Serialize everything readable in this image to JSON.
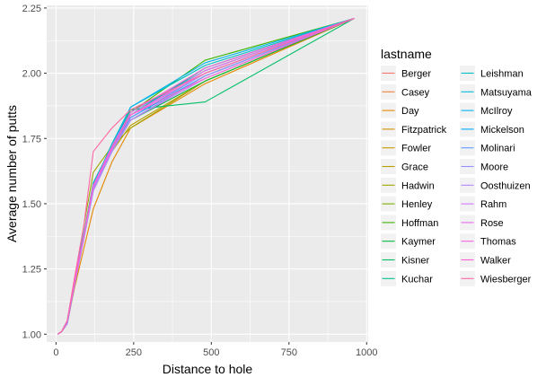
{
  "chart_data": {
    "type": "line",
    "title": "",
    "xlabel": "Distance to hole",
    "ylabel": "Average number of putts",
    "xlim": [
      -30,
      1005
    ],
    "ylim": [
      0.97,
      2.26
    ],
    "x_ticks": [
      0,
      250,
      500,
      750,
      1000
    ],
    "x_tick_labels": [
      "0",
      "250",
      "500",
      "750",
      "1000"
    ],
    "y_ticks": [
      1.0,
      1.25,
      1.5,
      1.75,
      2.0,
      2.25
    ],
    "y_tick_labels": [
      "1.00",
      "1.25",
      "1.50",
      "1.75",
      "2.00",
      "2.25"
    ],
    "grid": true,
    "panel_background": "#EBEBEB",
    "legend_position": "right",
    "legend": {
      "title": "lastname",
      "columns": [
        [
          "Berger",
          "Casey",
          "Day",
          "Fitzpatrick",
          "Fowler",
          "Grace",
          "Hadwin",
          "Henley",
          "Hoffman",
          "Kaymer",
          "Kisner",
          "Kuchar"
        ],
        [
          "Leishman",
          "Matsuyama",
          "McIlroy",
          "Mickelson",
          "Molinari",
          "Moore",
          "Oosthuizen",
          "Rahm",
          "Rose",
          "Thomas",
          "Walker",
          "Wiesberger"
        ]
      ]
    },
    "x": [
      6,
      18,
      36,
      60,
      90,
      120,
      180,
      240,
      480,
      960
    ],
    "series": [
      {
        "name": "Berger",
        "color": "#F8766D",
        "values": [
          1.0,
          1.01,
          1.05,
          1.2,
          1.38,
          1.56,
          1.71,
          1.83,
          2.0,
          2.21
        ]
      },
      {
        "name": "Casey",
        "color": "#F07F37",
        "values": [
          1.0,
          1.01,
          1.04,
          1.19,
          1.37,
          1.55,
          1.7,
          1.82,
          1.99,
          2.21
        ]
      },
      {
        "name": "Day",
        "color": "#E58700",
        "values": [
          1.0,
          1.01,
          1.04,
          1.18,
          1.33,
          1.48,
          1.66,
          1.79,
          1.96,
          2.21
        ]
      },
      {
        "name": "Fitzpatrick",
        "color": "#D89000",
        "values": [
          1.0,
          1.01,
          1.05,
          1.2,
          1.38,
          1.56,
          1.71,
          1.84,
          2.01,
          2.21
        ]
      },
      {
        "name": "Fowler",
        "color": "#C99800",
        "values": [
          1.0,
          1.01,
          1.04,
          1.2,
          1.38,
          1.57,
          1.72,
          1.84,
          2.0,
          2.21
        ]
      },
      {
        "name": "Grace",
        "color": "#B79F00",
        "values": [
          1.0,
          1.01,
          1.04,
          1.19,
          1.37,
          1.55,
          1.7,
          1.8,
          1.97,
          2.21
        ]
      },
      {
        "name": "Hadwin",
        "color": "#A3A500",
        "values": [
          1.0,
          1.01,
          1.05,
          1.21,
          1.42,
          1.62,
          1.72,
          1.79,
          1.97,
          2.21
        ]
      },
      {
        "name": "Henley",
        "color": "#7CAE00",
        "values": [
          1.0,
          1.01,
          1.04,
          1.2,
          1.38,
          1.56,
          1.71,
          1.84,
          2.02,
          2.21
        ]
      },
      {
        "name": "Hoffman",
        "color": "#39B600",
        "values": [
          1.0,
          1.01,
          1.05,
          1.21,
          1.39,
          1.58,
          1.72,
          1.85,
          2.05,
          2.21
        ]
      },
      {
        "name": "Kaymer",
        "color": "#00BA38",
        "values": [
          1.0,
          1.01,
          1.04,
          1.19,
          1.37,
          1.56,
          1.7,
          1.82,
          1.97,
          2.21
        ]
      },
      {
        "name": "Kisner",
        "color": "#00BE67",
        "values": [
          1.0,
          1.01,
          1.05,
          1.2,
          1.38,
          1.56,
          1.72,
          1.86,
          1.89,
          2.21
        ]
      },
      {
        "name": "Kuchar",
        "color": "#00C08B",
        "values": [
          1.0,
          1.01,
          1.05,
          1.2,
          1.38,
          1.57,
          1.72,
          1.84,
          2.02,
          2.21
        ]
      },
      {
        "name": "Leishman",
        "color": "#00BFC4",
        "values": [
          1.0,
          1.01,
          1.05,
          1.21,
          1.38,
          1.57,
          1.73,
          1.87,
          2.03,
          2.21
        ]
      },
      {
        "name": "Matsuyama",
        "color": "#00BBDB",
        "values": [
          1.0,
          1.01,
          1.05,
          1.2,
          1.38,
          1.58,
          1.72,
          1.85,
          2.01,
          2.21
        ]
      },
      {
        "name": "McIlroy",
        "color": "#00B4EF",
        "values": [
          1.0,
          1.01,
          1.05,
          1.21,
          1.39,
          1.56,
          1.72,
          1.87,
          2.04,
          2.21
        ]
      },
      {
        "name": "Mickelson",
        "color": "#00A9FF",
        "values": [
          1.0,
          1.01,
          1.04,
          1.2,
          1.37,
          1.55,
          1.71,
          1.83,
          1.99,
          2.21
        ]
      },
      {
        "name": "Molinari",
        "color": "#619CFF",
        "values": [
          1.0,
          1.01,
          1.04,
          1.19,
          1.37,
          1.55,
          1.7,
          1.83,
          2.0,
          2.21
        ]
      },
      {
        "name": "Moore",
        "color": "#9590FF",
        "values": [
          1.0,
          1.01,
          1.04,
          1.2,
          1.38,
          1.56,
          1.71,
          1.82,
          1.99,
          2.21
        ]
      },
      {
        "name": "Oosthuizen",
        "color": "#B983FF",
        "values": [
          1.0,
          1.01,
          1.04,
          1.19,
          1.37,
          1.55,
          1.7,
          1.82,
          1.98,
          2.21
        ]
      },
      {
        "name": "Rahm",
        "color": "#D575FE",
        "values": [
          1.0,
          1.01,
          1.05,
          1.2,
          1.38,
          1.56,
          1.71,
          1.84,
          2.0,
          2.21
        ]
      },
      {
        "name": "Rose",
        "color": "#E76BF3",
        "values": [
          1.0,
          1.01,
          1.05,
          1.2,
          1.38,
          1.57,
          1.71,
          1.84,
          2.01,
          2.21
        ]
      },
      {
        "name": "Thomas",
        "color": "#F564E3",
        "values": [
          1.0,
          1.01,
          1.05,
          1.21,
          1.38,
          1.57,
          1.72,
          1.85,
          2.02,
          2.21
        ]
      },
      {
        "name": "Walker",
        "color": "#FD61D1",
        "values": [
          1.0,
          1.01,
          1.05,
          1.2,
          1.38,
          1.57,
          1.71,
          1.84,
          1.98,
          2.21
        ]
      },
      {
        "name": "Wiesberger",
        "color": "#FF67A4",
        "values": [
          1.0,
          1.01,
          1.05,
          1.22,
          1.42,
          1.7,
          1.79,
          1.86,
          2.0,
          2.21
        ]
      }
    ]
  }
}
